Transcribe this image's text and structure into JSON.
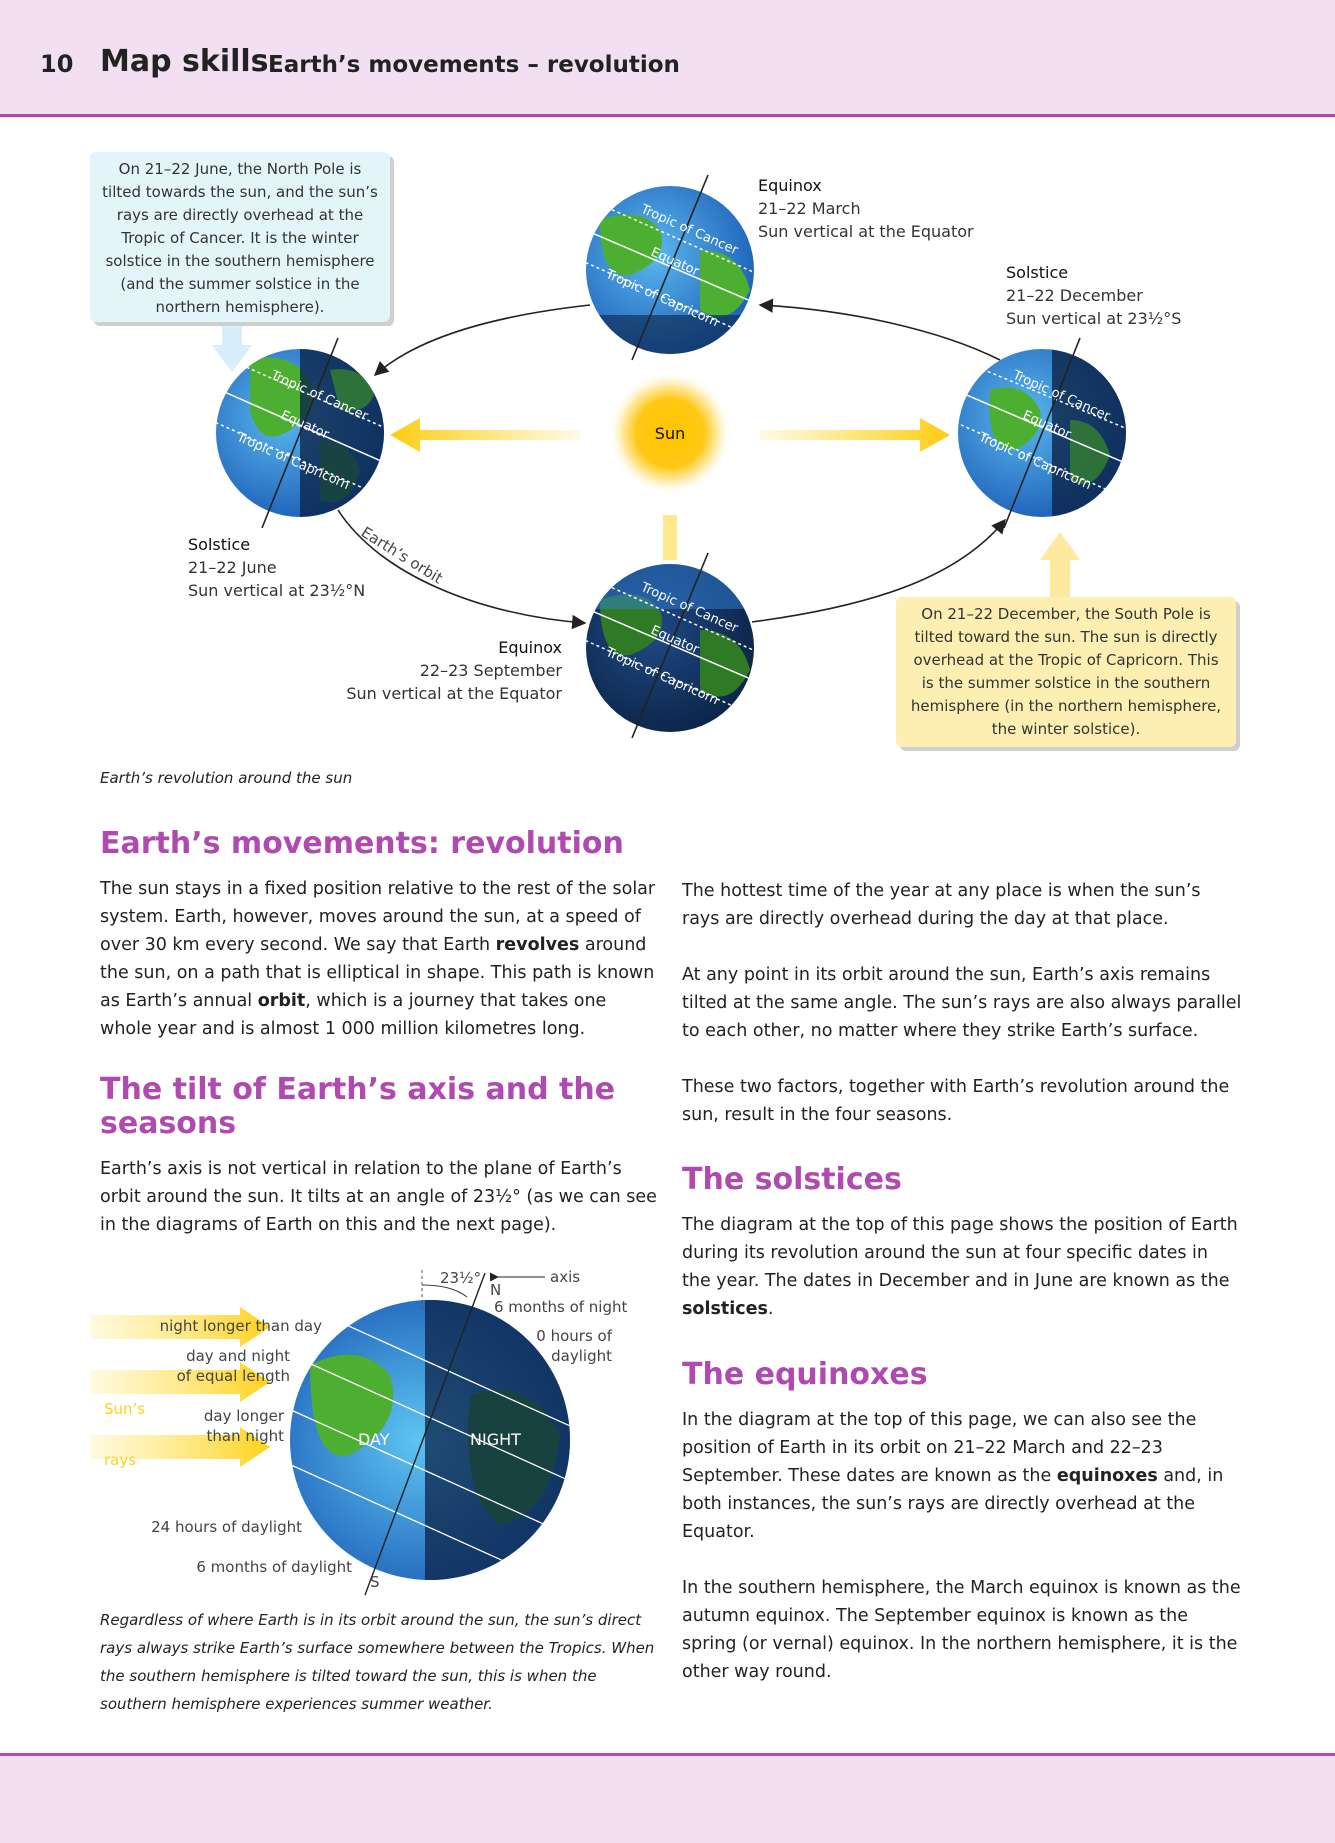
{
  "header": {
    "page_number": "10",
    "section": "Map skills",
    "title": "Earth’s movements – revolution"
  },
  "orbit_diagram": {
    "sun_label": "Sun",
    "orbit_label": "Earth’s orbit",
    "globe_lines": {
      "cancer": "Tropic of Cancer",
      "equator": "Equator",
      "capricorn": "Tropic of Capricorn"
    },
    "march": {
      "name": "Equinox",
      "date": "21–22 March",
      "note": "Sun vertical at the Equator"
    },
    "december": {
      "name": "Solstice",
      "date": "21–22 December",
      "note": "Sun vertical at 23½°S"
    },
    "june": {
      "name": "Solstice",
      "date": "21–22 June",
      "note": "Sun vertical at 23½°N"
    },
    "september": {
      "name": "Equinox",
      "date": "22–23 September",
      "note": "Sun vertical at the Equator"
    },
    "callout_june": "On 21–22 June, the North Pole is tilted towards the sun, and the sun’s rays are directly overhead at the Tropic of Cancer. It is the winter solstice in the southern hemisphere (and the summer solstice in the northern hemisphere).",
    "callout_december": "On 21–22 December, the South Pole is tilted toward the sun. The sun is directly overhead at the Tropic of Capricorn. This is the summer solstice in the southern hemisphere (in the northern hemisphere, the winter solstice).",
    "caption": "Earth’s revolution around the sun"
  },
  "sections": {
    "revolution": {
      "heading": "Earth’s movements: revolution",
      "p1_a": "The sun stays in a fixed position relative to the rest of the solar system. Earth, however, moves around the sun, at a speed of over 30 km every second. We say that Earth ",
      "p1_b": "revolves",
      "p1_c": " around the sun, on a path that is elliptical in shape. This path is known as Earth’s annual ",
      "p1_d": "orbit",
      "p1_e": ", which is a journey that takes one whole year and is almost 1 000 million kilometres long."
    },
    "tilt": {
      "heading": "The tilt of Earth’s axis and the seasons",
      "p1": "Earth’s axis is not vertical in relation to the plane of Earth’s orbit around the sun. It tilts at an angle of 23½° (as we can see in the diagrams of Earth on this and the next page)."
    },
    "right": {
      "p1": "The hottest time of the year at any place is when the sun’s rays are directly overhead during the day at that place.",
      "p2": "At any point in its orbit around the sun, Earth’s axis remains tilted at the same angle. The sun’s rays are also always parallel to each other, no matter where they strike Earth’s surface.",
      "p3": "These two factors, together with Earth’s revolution around the sun, result in the four seasons."
    },
    "solstices": {
      "heading": "The solstices",
      "p1_a": "The diagram at the top of this page shows the position of Earth during its revolution around the sun at four specific dates in the year. The dates in December and in June are known as the ",
      "p1_b": "solstices",
      "p1_c": "."
    },
    "equinoxes": {
      "heading": "The equinoxes",
      "p1_a": "In the diagram at the top of this page, we can also see the position of Earth in its orbit on 21–22 March and 22–23 September. These dates are known as the ",
      "p1_b": "equinoxes",
      "p1_c": " and, in both instances, the sun’s rays are directly overhead at the Equator.",
      "p2": "In the southern hemisphere, the March equinox is known as the autumn equinox. The September equinox is known as the spring (or vernal) equinox. In the northern hemisphere, it is the other way round."
    }
  },
  "tilt_diagram": {
    "angle": "23½°",
    "axis": "axis",
    "north": "N",
    "south": "S",
    "months_night": "6 months of night",
    "zero_hours_1": "0 hours of",
    "zero_hours_2": "daylight",
    "night_longer": "night longer than day",
    "equal_1": "day and night",
    "equal_2": "of equal length",
    "longer_1": "day longer",
    "longer_2": "than night",
    "suns": "Sun’s",
    "rays": "rays",
    "day": "DAY",
    "night": "NIGHT",
    "hours24": "24 hours of daylight",
    "months_day": "6 months of daylight",
    "caption": "Regardless of  where Earth is in its orbit around the sun, the sun’s direct rays always strike Earth’s surface somewhere between the Tropics. When the southern hemisphere is tilted toward the sun, this is when the southern hemisphere experiences summer weather."
  },
  "colors": {
    "accent_purple": "#b04ab0",
    "header_bg": "#f2dff2",
    "sun_yellow": "#fcc419",
    "ocean_blue": "#2f7fd6",
    "land_green": "#4caf32",
    "night_navy": "#12305a"
  }
}
